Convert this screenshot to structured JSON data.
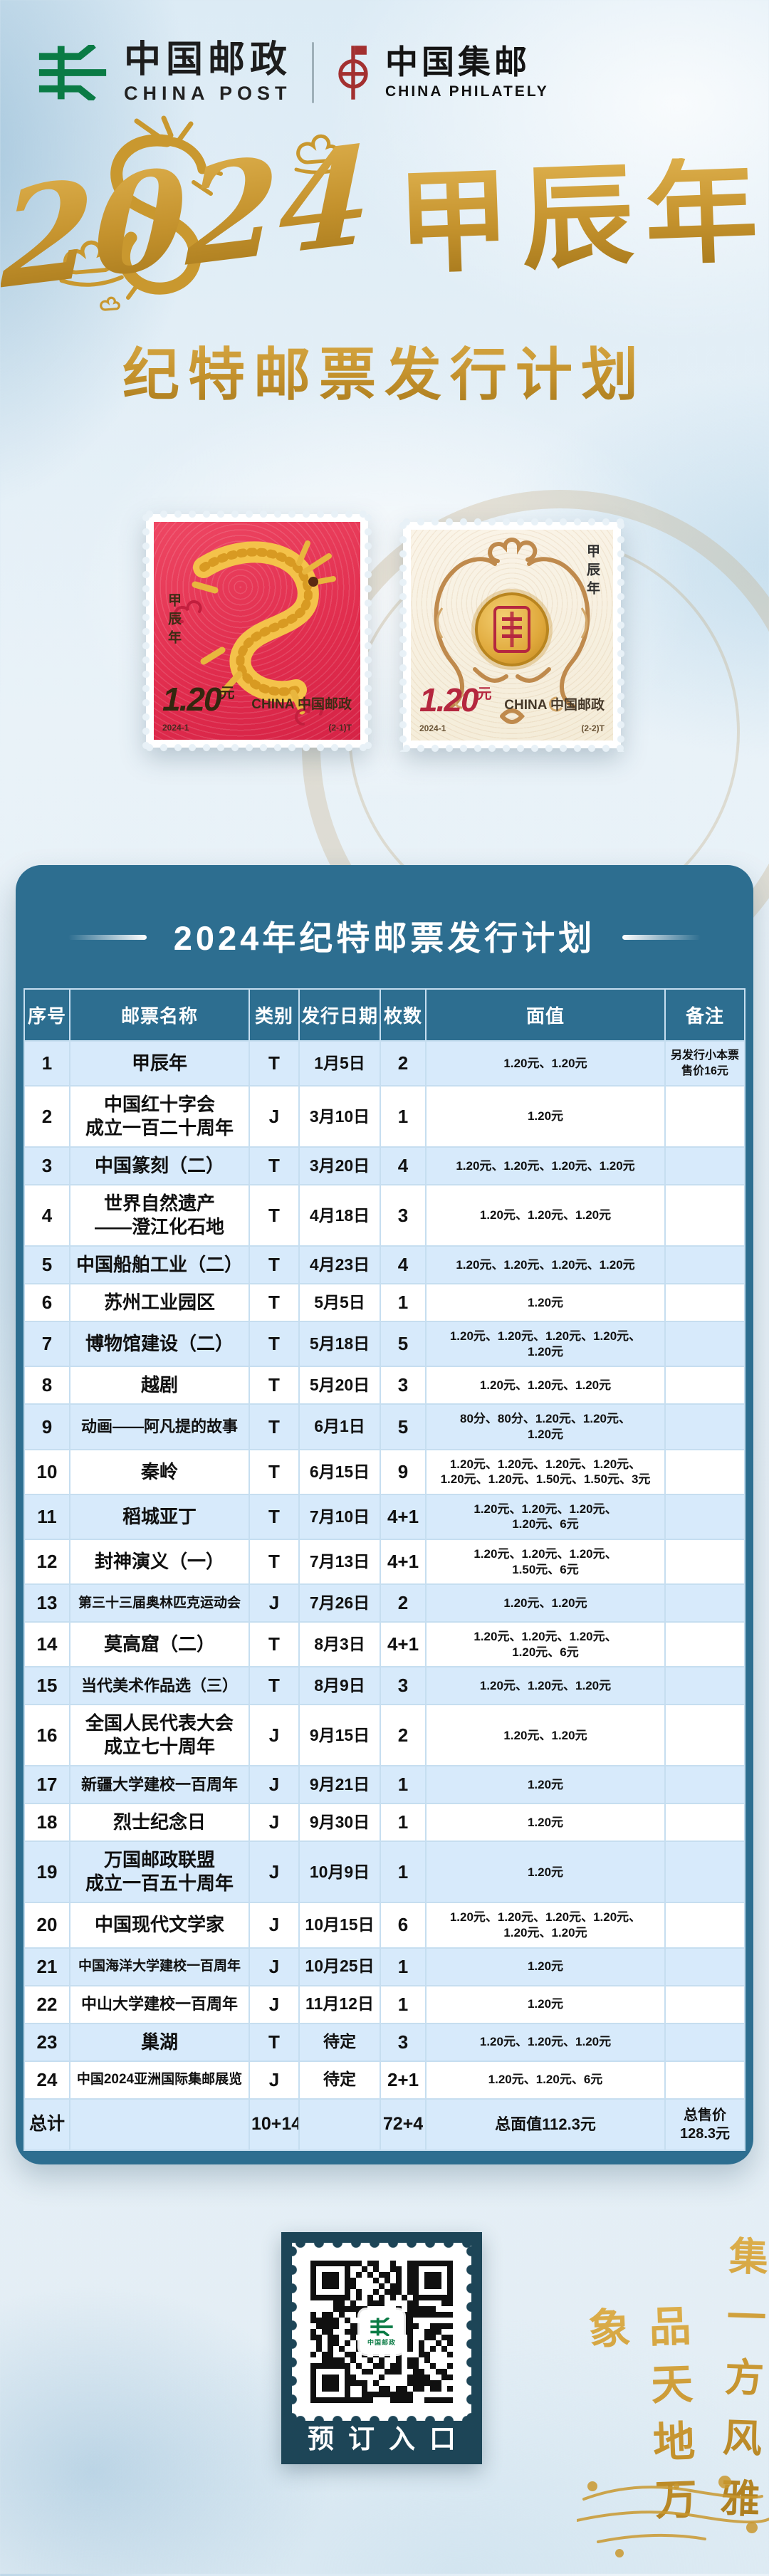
{
  "logos": {
    "china_post_cn": "中国邮政",
    "china_post_en": "CHINA POST",
    "philately_cn": "中国集邮",
    "philately_en": "CHINA PHILATELY"
  },
  "hero": {
    "year": "2024",
    "era": "甲辰年",
    "subtitle": "纪特邮票发行计划"
  },
  "stamps": {
    "red": {
      "era_vertical": "甲辰年",
      "value": "1.20",
      "unit": "元",
      "country": "CHINA 中国邮政",
      "series": "2024-1",
      "index": "(2-1)T"
    },
    "cream": {
      "era_vertical": "甲辰年",
      "value": "1.20",
      "unit": "元",
      "country": "CHINA 中国邮政",
      "series": "2024-1",
      "index": "(2-2)T"
    }
  },
  "table": {
    "title": "2024年纪特邮票发行计划",
    "columns": [
      "序号",
      "邮票名称",
      "类别",
      "发行日期",
      "枚数",
      "面值",
      "备注"
    ],
    "rows": [
      [
        "1",
        "甲辰年",
        "T",
        "1月5日",
        "2",
        "1.20元、1.20元",
        "另发行小本票\n售价16元"
      ],
      [
        "2",
        "中国红十字会\n成立一百二十周年",
        "J",
        "3月10日",
        "1",
        "1.20元",
        ""
      ],
      [
        "3",
        "中国篆刻（二）",
        "T",
        "3月20日",
        "4",
        "1.20元、1.20元、1.20元、1.20元",
        ""
      ],
      [
        "4",
        "世界自然遗产\n——澄江化石地",
        "T",
        "4月18日",
        "3",
        "1.20元、1.20元、1.20元",
        ""
      ],
      [
        "5",
        "中国船舶工业（二）",
        "T",
        "4月23日",
        "4",
        "1.20元、1.20元、1.20元、1.20元",
        ""
      ],
      [
        "6",
        "苏州工业园区",
        "T",
        "5月5日",
        "1",
        "1.20元",
        ""
      ],
      [
        "7",
        "博物馆建设（二）",
        "T",
        "5月18日",
        "5",
        "1.20元、1.20元、1.20元、1.20元、\n1.20元",
        ""
      ],
      [
        "8",
        "越剧",
        "T",
        "5月20日",
        "3",
        "1.20元、1.20元、1.20元",
        ""
      ],
      [
        "9",
        "动画——阿凡提的故事",
        "T",
        "6月1日",
        "5",
        "80分、80分、1.20元、1.20元、\n1.20元",
        ""
      ],
      [
        "10",
        "秦岭",
        "T",
        "6月15日",
        "9",
        "1.20元、1.20元、1.20元、1.20元、\n1.20元、1.20元、1.50元、1.50元、3元",
        ""
      ],
      [
        "11",
        "稻城亚丁",
        "T",
        "7月10日",
        "4+1",
        "1.20元、1.20元、1.20元、\n1.20元、6元",
        ""
      ],
      [
        "12",
        "封神演义（一）",
        "T",
        "7月13日",
        "4+1",
        "1.20元、1.20元、1.20元、\n1.50元、6元",
        ""
      ],
      [
        "13",
        "第三十三届奥林匹克运动会",
        "J",
        "7月26日",
        "2",
        "1.20元、1.20元",
        ""
      ],
      [
        "14",
        "莫高窟（二）",
        "T",
        "8月3日",
        "4+1",
        "1.20元、1.20元、1.20元、\n1.20元、6元",
        ""
      ],
      [
        "15",
        "当代美术作品选（三）",
        "T",
        "8月9日",
        "3",
        "1.20元、1.20元、1.20元",
        ""
      ],
      [
        "16",
        "全国人民代表大会\n成立七十周年",
        "J",
        "9月15日",
        "2",
        "1.20元、1.20元",
        ""
      ],
      [
        "17",
        "新疆大学建校一百周年",
        "J",
        "9月21日",
        "1",
        "1.20元",
        ""
      ],
      [
        "18",
        "烈士纪念日",
        "J",
        "9月30日",
        "1",
        "1.20元",
        ""
      ],
      [
        "19",
        "万国邮政联盟\n成立一百五十周年",
        "J",
        "10月9日",
        "1",
        "1.20元",
        ""
      ],
      [
        "20",
        "中国现代文学家",
        "J",
        "10月15日",
        "6",
        "1.20元、1.20元、1.20元、1.20元、\n1.20元、1.20元",
        ""
      ],
      [
        "21",
        "中国海洋大学建校一百周年",
        "J",
        "10月25日",
        "1",
        "1.20元",
        ""
      ],
      [
        "22",
        "中山大学建校一百周年",
        "J",
        "11月12日",
        "1",
        "1.20元",
        ""
      ],
      [
        "23",
        "巢湖",
        "T",
        "待定",
        "3",
        "1.20元、1.20元、1.20元",
        ""
      ],
      [
        "24",
        "中国2024亚洲国际集邮展览",
        "J",
        "待定",
        "2+1",
        "1.20元、1.20元、6元",
        ""
      ]
    ],
    "total_row": [
      "总计",
      "",
      "10+14",
      "",
      "72+4",
      "总面值112.3元",
      "总售价\n128.3元"
    ]
  },
  "qr": {
    "caption": "预订入口",
    "logo_text": "中国邮政"
  },
  "slogan": {
    "right": "集一方风雅",
    "left": "品天地万象"
  },
  "colors": {
    "panel_teal": "#2d6e90",
    "row_blue": "#d7eafb",
    "grid_line": "#c6def0",
    "gold": "#c4922d",
    "stamp_red": "#e02c4d",
    "stamp_cream": "#f4ecd8",
    "ornament_tan": "#bf8a4d",
    "qr_navy": "#1d4557",
    "post_green": "#0a7b45",
    "philately_red": "#a33030"
  }
}
